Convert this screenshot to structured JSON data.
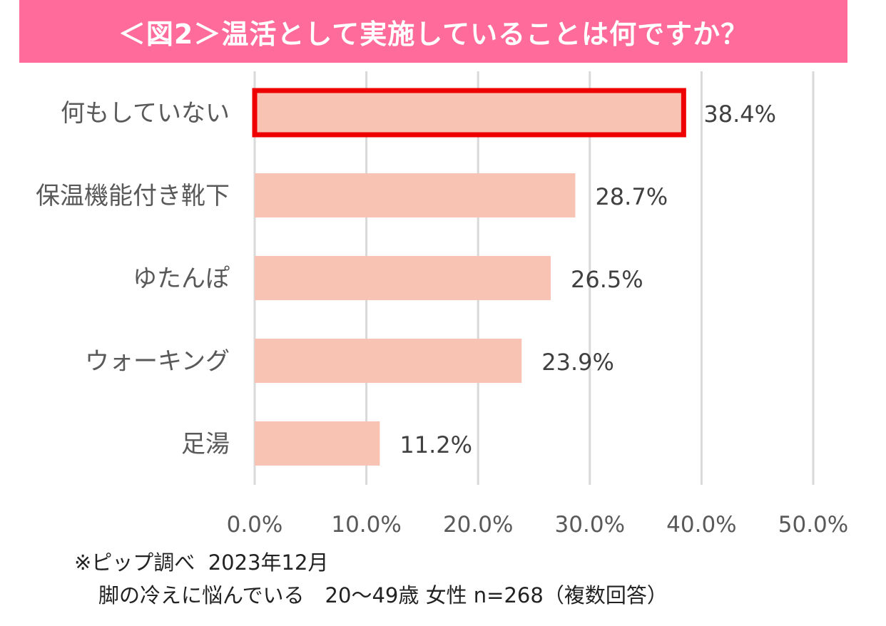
{
  "title": "＜図2＞温活として実施していることは何ですか？",
  "colors": {
    "header_bg": "#ff6b9b",
    "bar_fill": "#f8c3b3",
    "highlight_border": "#ee0000",
    "grid": "#d9d9d9",
    "category_text": "#595959",
    "tick_text": "#595959",
    "data_label_text": "#404040"
  },
  "chart_data": {
    "type": "bar",
    "orientation": "horizontal",
    "categories": [
      "何もしていない",
      "保温機能付き靴下",
      "ゆたんぽ",
      "ウォーキング",
      "足湯"
    ],
    "values": [
      38.4,
      28.7,
      26.5,
      23.9,
      11.2
    ],
    "data_labels": [
      "38.4%",
      "28.7%",
      "26.5%",
      "23.9%",
      "11.2%"
    ],
    "xlim": [
      0,
      50
    ],
    "xticks": [
      0,
      10,
      20,
      30,
      40,
      50
    ],
    "xtick_labels": [
      "0.0%",
      "10.0%",
      "20.0%",
      "30.0%",
      "40.0%",
      "50.0%"
    ],
    "grid": "vertical",
    "highlighted_category": "何もしていない"
  },
  "notes": {
    "line1": "※ピップ調べ  2023年12月",
    "line2": "脚の冷えに悩んでいる　20～49歳 女性 n=268（複数回答）"
  }
}
